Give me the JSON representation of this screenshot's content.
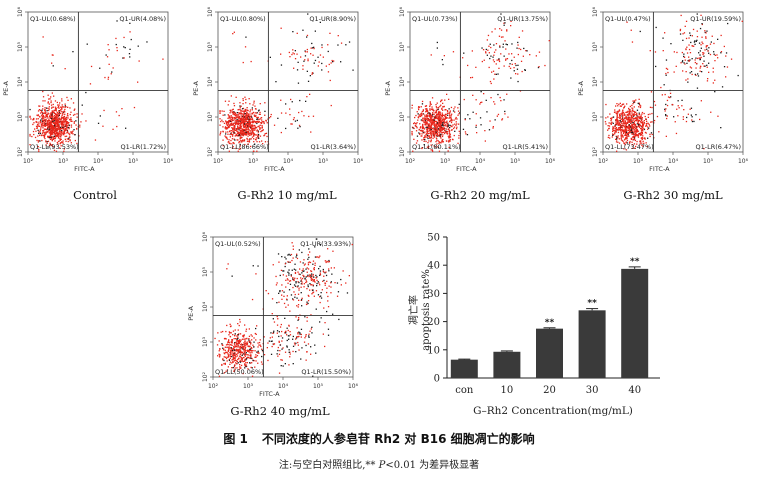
{
  "figure": {
    "caption_number": "图 1",
    "caption_text": "不同浓度的人参皂苷 Rh2 对 B16 细胞凋亡的影响",
    "note_prefix": "注:与空白对照组比,** ",
    "note_p": "P",
    "note_suffix": "<0.01 为差异极显著"
  },
  "flow_axes": {
    "x_label": "FITC-A",
    "y_label": "PE-A",
    "x_ticks": [
      "10²",
      "10³",
      "10⁴",
      "10⁵",
      "10⁶"
    ],
    "y_ticks": [
      "10²",
      "10³",
      "10⁴",
      "10⁵",
      "10⁶"
    ],
    "dot_colors": {
      "live": "#e8261b",
      "dark": "#1a1a1a"
    }
  },
  "flow_panels": [
    {
      "caption": "Control",
      "ul": "Q1-UL(0.68%)",
      "ur": "Q1-UR(4.08%)",
      "ll": "Q1-LL(93.53%)",
      "lr": "Q1-LR(1.72%)"
    },
    {
      "caption": "G-Rh2 10 mg/mL",
      "ul": "Q1-UL(0.80%)",
      "ur": "Q1-UR(8.90%)",
      "ll": "Q1-LL(86.66%)",
      "lr": "Q1-LR(3.64%)"
    },
    {
      "caption": "G-Rh2 20 mg/mL",
      "ul": "Q1-UL(0.73%)",
      "ur": "Q1-UR(13.75%)",
      "ll": "Q1-LL(80.11%)",
      "lr": "Q1-LR(5.41%)"
    },
    {
      "caption": "G-Rh2 30 mg/mL",
      "ul": "Q1-UL(0.47%)",
      "ur": "Q1-UR(19.59%)",
      "ll": "Q1-LL(73.47%)",
      "lr": "Q1-LR(6.47%)"
    },
    {
      "caption": "G-Rh2 40 mg/mL",
      "ul": "Q1-UL(0.52%)",
      "ur": "Q1-UR(33.93%)",
      "ll": "Q1-LL(50.06%)",
      "lr": "Q1-LR(15.50%)"
    }
  ],
  "chart_data": {
    "type": "bar",
    "categories": [
      "con",
      "10",
      "20",
      "30",
      "40"
    ],
    "values": [
      6.5,
      9.3,
      17.5,
      24.0,
      38.7
    ],
    "errors": [
      0.2,
      0.3,
      0.3,
      0.6,
      0.7
    ],
    "significance": [
      "",
      "",
      "**",
      "**",
      "**"
    ],
    "ylabel_cn": "凋亡率",
    "ylabel_en": "apoptosis rate%",
    "xlabel": "G–Rh2 Concentration(mg/mL)",
    "ylim": [
      0,
      50
    ],
    "yticks": [
      0,
      10,
      20,
      30,
      40,
      50
    ],
    "bar_color": "#3a3a3a"
  }
}
